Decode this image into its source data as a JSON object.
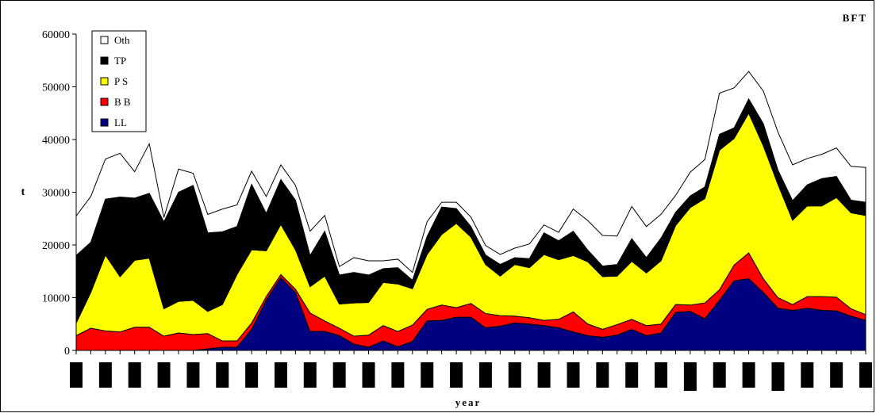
{
  "chart_data": {
    "type": "area",
    "stacked": true,
    "title": "BFT",
    "xlabel": "year",
    "ylabel": "t",
    "ylim": [
      0,
      60000
    ],
    "yticks": [
      0,
      10000,
      20000,
      30000,
      40000,
      50000,
      60000
    ],
    "ytick_labels": [
      "0",
      "10000",
      "20000",
      "30000",
      "40000",
      "50000",
      "60000"
    ],
    "xtick_labels_note": "",
    "legend": {
      "placement": "top-left",
      "order": [
        "Oth",
        "TP",
        "P S",
        "B B",
        "LL"
      ]
    },
    "series": [
      {
        "name": "LL",
        "color": "#000080",
        "values": [
          0,
          0,
          0,
          0,
          0,
          0,
          0,
          0,
          0,
          300,
          600,
          600,
          4000,
          9500,
          13800,
          11000,
          3600,
          3600,
          2800,
          1200,
          600,
          1800,
          700,
          1700,
          5600,
          5700,
          6300,
          6300,
          4300,
          4600,
          5200,
          5000,
          4700,
          4300,
          3500,
          2800,
          2500,
          2900,
          4000,
          2800,
          3300,
          7200,
          7400,
          6000,
          9500,
          13200,
          13600,
          11000,
          8000,
          7600,
          8000,
          7600,
          7500,
          6500,
          5700
        ]
      },
      {
        "name": "B B",
        "color": "#ff0000",
        "values": [
          2800,
          4200,
          3700,
          3500,
          4400,
          4400,
          2700,
          3300,
          3000,
          2900,
          1200,
          1200,
          1200,
          700,
          600,
          600,
          3500,
          2000,
          1400,
          1500,
          2300,
          2900,
          2900,
          3100,
          2200,
          2900,
          1800,
          2600,
          2700,
          2000,
          1300,
          1200,
          1000,
          1600,
          3800,
          2200,
          1500,
          2000,
          1900,
          1900,
          1700,
          1500,
          1200,
          3000,
          2000,
          3000,
          4900,
          2600,
          2000,
          1100,
          2200,
          2600,
          2600,
          1400,
          1100
        ]
      },
      {
        "name": "P S",
        "color": "#ffff00",
        "values": [
          2400,
          6800,
          14400,
          10500,
          12700,
          13100,
          5200,
          6000,
          6500,
          4200,
          6900,
          12600,
          13900,
          8700,
          9500,
          7500,
          5000,
          8500,
          4600,
          6300,
          6200,
          8200,
          9000,
          6900,
          10400,
          13400,
          16000,
          12600,
          9300,
          7500,
          9800,
          9500,
          12500,
          11300,
          10700,
          11800,
          10000,
          9200,
          11000,
          10000,
          12000,
          15000,
          18500,
          19800,
          26500,
          24000,
          26500,
          25200,
          21500,
          16000,
          17200,
          17200,
          18900,
          18200,
          18800
        ]
      },
      {
        "name": "TP",
        "color": "#000000",
        "values": [
          12800,
          9500,
          10600,
          15100,
          11800,
          12300,
          16500,
          20700,
          21800,
          14900,
          13800,
          9100,
          12400,
          7100,
          8500,
          9400,
          5900,
          8500,
          5500,
          5800,
          5200,
          2600,
          3100,
          1600,
          3400,
          5200,
          2800,
          2000,
          1800,
          2200,
          1300,
          1700,
          4100,
          3600,
          4600,
          2200,
          2000,
          2200,
          4300,
          2900,
          4300,
          2500,
          2200,
          2200,
          3000,
          2000,
          2700,
          4200,
          2700,
          3700,
          4000,
          5200,
          4000,
          2400,
          2500
        ]
      },
      {
        "name": "Oth",
        "color": "#ffffff",
        "values": [
          7500,
          8700,
          7600,
          8300,
          5000,
          9400,
          800,
          4400,
          2300,
          3500,
          4300,
          4100,
          2500,
          3200,
          2800,
          2800,
          4600,
          3000,
          1600,
          2800,
          2700,
          1500,
          1600,
          1500,
          2800,
          900,
          1200,
          1800,
          1800,
          1900,
          1800,
          2800,
          1500,
          1600,
          4200,
          5600,
          5800,
          5400,
          6100,
          5900,
          4500,
          3200,
          4500,
          5200,
          7800,
          7600,
          5200,
          6200,
          7200,
          6800,
          5000,
          4600,
          5400,
          6400,
          6600
        ]
      }
    ]
  }
}
